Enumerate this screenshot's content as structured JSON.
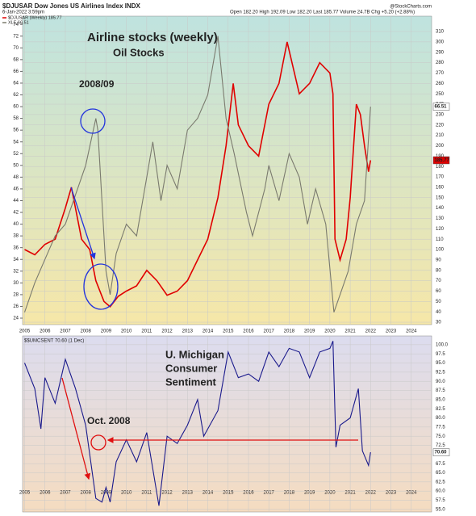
{
  "chart_data": [
    {
      "type": "line",
      "title": "$DJUSAR Dow Jones US Airlines Index INDX",
      "subtitle": "6-Jan-2022 3:59pm",
      "quote": "Open 182.20 High 192.09 Low 182.20 Last 185.77 Volume 24.7B Chg +5.20 (+2.88%)",
      "credit": "@StockCharts.com",
      "annotations": [
        "Airline stocks (weekly)",
        "Oil Stocks",
        "2008/09"
      ],
      "xlim": [
        2004.9,
        2025.0
      ],
      "xticks": [
        2005,
        2006,
        2007,
        2008,
        2009,
        2010,
        2011,
        2012,
        2013,
        2014,
        2015,
        2016,
        2017,
        2018,
        2019,
        2020,
        2021,
        2022,
        2023,
        2024
      ],
      "ylim": [
        22.9,
        75.4
      ],
      "yticks": [
        24,
        26,
        28,
        30,
        32,
        34,
        36,
        38,
        40,
        42,
        44,
        46,
        48,
        50,
        52,
        54,
        56,
        58,
        60,
        62,
        64,
        66,
        68,
        70,
        72,
        74
      ],
      "y2lim": [
        27.7,
        324.8
      ],
      "y2ticks": [
        30,
        40,
        50,
        60,
        70,
        80,
        90,
        100,
        110,
        120,
        130,
        140,
        150,
        160,
        170,
        180,
        190,
        200,
        210,
        220,
        230,
        240,
        250,
        260,
        270,
        280,
        290,
        300,
        310
      ],
      "grid": true,
      "series": [
        {
          "name": "$DJUSAR (Weekly) 185.77",
          "color": "#e00000",
          "axis": "y2",
          "last_label": "185.77",
          "x": [
            2005.0,
            2005.5,
            2006.0,
            2006.5,
            2007.0,
            2007.3,
            2007.8,
            2008.2,
            2008.5,
            2008.9,
            2009.2,
            2009.6,
            2010.0,
            2010.5,
            2011.0,
            2011.5,
            2012.0,
            2012.5,
            2013.0,
            2013.5,
            2014.0,
            2014.5,
            2014.9,
            2015.25,
            2015.5,
            2016.0,
            2016.5,
            2017.0,
            2017.5,
            2017.9,
            2018.5,
            2019.0,
            2019.5,
            2020.0,
            2020.15,
            2020.25,
            2020.5,
            2020.8,
            2021.0,
            2021.3,
            2021.5,
            2021.7,
            2021.9,
            2022.0
          ],
          "values": [
            100,
            95,
            105,
            110,
            140,
            160,
            110,
            100,
            70,
            50,
            45,
            55,
            60,
            65,
            80,
            70,
            56,
            60,
            70,
            90,
            110,
            150,
            200,
            260,
            220,
            200,
            190,
            240,
            260,
            300,
            250,
            260,
            280,
            270,
            250,
            110,
            90,
            110,
            150,
            240,
            230,
            200,
            175,
            186
          ]
        },
        {
          "name": "XLE 66.51",
          "color": "#7a7a6e",
          "axis": "y",
          "last_label": "66.51",
          "x": [
            2005.0,
            2005.5,
            2006.0,
            2006.5,
            2007.0,
            2007.5,
            2008.0,
            2008.5,
            2008.6,
            2009.0,
            2009.2,
            2009.5,
            2010.0,
            2010.5,
            2011.0,
            2011.3,
            2011.7,
            2012.0,
            2012.5,
            2013.0,
            2013.5,
            2014.0,
            2014.5,
            2014.9,
            2015.3,
            2015.9,
            2016.2,
            2016.8,
            2017.0,
            2017.5,
            2018.0,
            2018.5,
            2018.9,
            2019.3,
            2019.8,
            2020.2,
            2020.5,
            2020.9,
            2021.3,
            2021.7,
            2022.0
          ],
          "values": [
            25,
            30,
            34,
            38,
            40,
            45,
            50,
            58,
            56,
            32,
            28,
            35,
            40,
            38,
            48,
            54,
            44,
            50,
            46,
            56,
            58,
            62,
            72,
            58,
            52,
            42,
            38,
            46,
            50,
            44,
            52,
            48,
            40,
            46,
            40,
            25,
            28,
            32,
            40,
            44,
            60
          ]
        }
      ]
    },
    {
      "type": "line",
      "title": "$$UMCSENT 70.60 (1 Dec)",
      "annotations": [
        "U. Michigan",
        "Consumer",
        "Sentiment",
        "Oct. 2008"
      ],
      "xlim": [
        2004.9,
        2025.0
      ],
      "xticks": [
        2005,
        2006,
        2007,
        2008,
        2009,
        2010,
        2011,
        2012,
        2013,
        2014,
        2015,
        2016,
        2017,
        2018,
        2019,
        2020,
        2021,
        2022,
        2023,
        2024
      ],
      "y2lim": [
        54.3,
        102.4
      ],
      "y2ticks": [
        {
          "value": 55,
          "label": "55.0"
        },
        57.5,
        {
          "value": 60,
          "label": "60.0"
        },
        62.5,
        {
          "value": 65,
          "label": "65.0"
        },
        67.5,
        {
          "value": 70,
          "label": "70.0"
        },
        72.5,
        {
          "value": 75,
          "label": "75.0"
        },
        77.5,
        {
          "value": 80,
          "label": "80.0"
        },
        82.5,
        {
          "value": 85,
          "label": "85.0"
        },
        87.5,
        {
          "value": 90,
          "label": "90.0"
        },
        92.5,
        {
          "value": 95,
          "label": "95.0"
        },
        97.5,
        {
          "value": 100,
          "label": "100.0"
        }
      ],
      "grid": true,
      "series": [
        {
          "color": "#1a1a8c",
          "axis": "y2",
          "last_label": "70.60",
          "x": [
            2005.0,
            2005.5,
            2005.8,
            2006.0,
            2006.5,
            2007.0,
            2007.5,
            2008.0,
            2008.5,
            2008.8,
            2009.0,
            2009.2,
            2009.5,
            2010.0,
            2010.5,
            2011.0,
            2011.6,
            2012.0,
            2012.5,
            2013.0,
            2013.5,
            2013.8,
            2014.5,
            2015.0,
            2015.5,
            2016.0,
            2016.5,
            2017.0,
            2017.5,
            2018.0,
            2018.5,
            2019.0,
            2019.5,
            2020.0,
            2020.15,
            2020.3,
            2020.5,
            2021.0,
            2021.4,
            2021.6,
            2021.9,
            2022.0
          ],
          "values": [
            95,
            88,
            77,
            91,
            84,
            96,
            88,
            78,
            58,
            57,
            61,
            57,
            68,
            74,
            68,
            76,
            56,
            75,
            73,
            78,
            85,
            75,
            82,
            98,
            91,
            92,
            90,
            98,
            94,
            99,
            98,
            91,
            98,
            99,
            101,
            72,
            78,
            80,
            88,
            71,
            67,
            70.6
          ]
        }
      ]
    }
  ]
}
